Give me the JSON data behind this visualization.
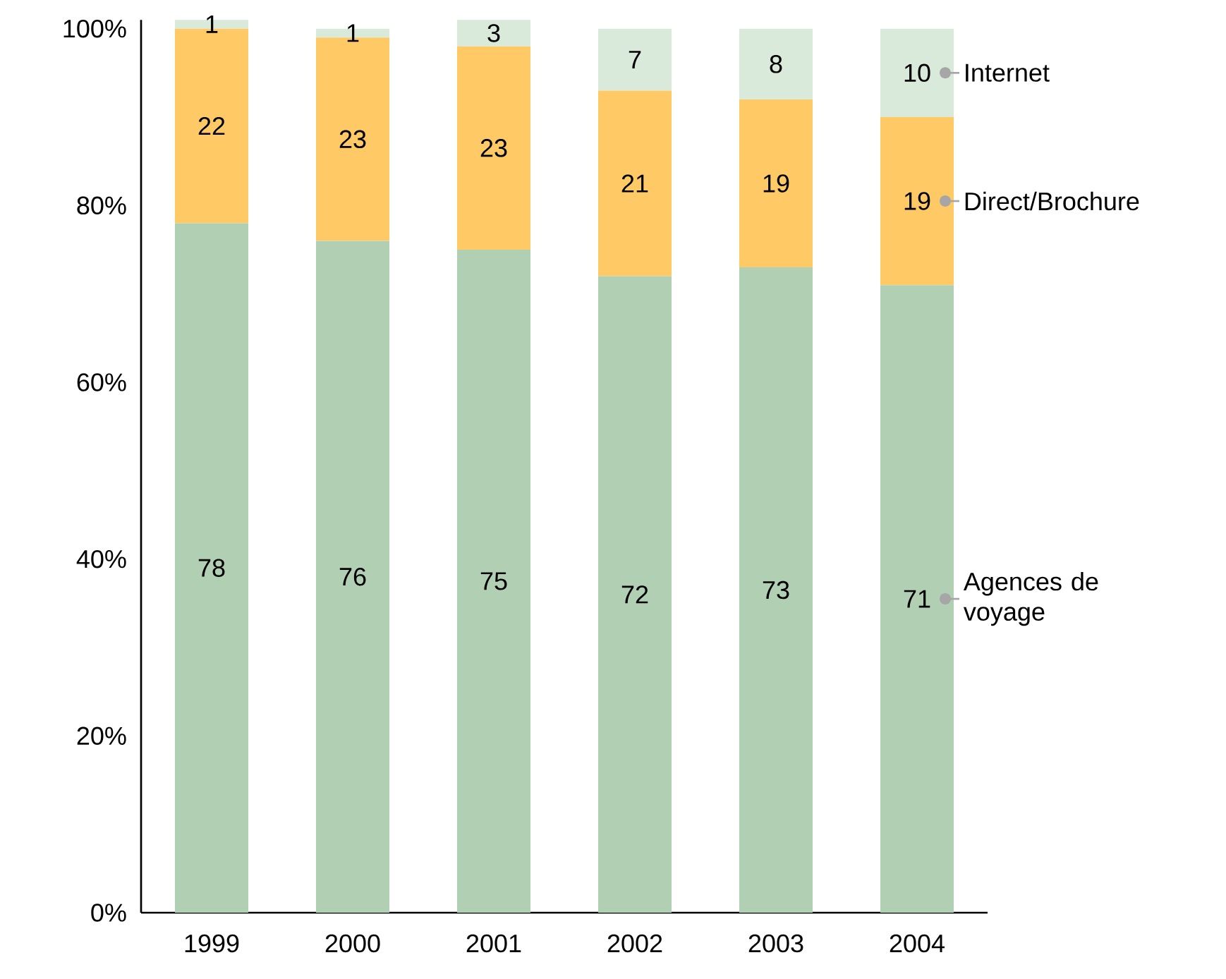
{
  "chart_data": {
    "type": "bar",
    "stacked": true,
    "data_labels": true,
    "categories": [
      "1999",
      "2000",
      "2001",
      "2002",
      "2003",
      "2004"
    ],
    "series": [
      {
        "name": "Agences de voyage",
        "color": "#b1d0b3",
        "values": [
          78,
          76,
          75,
          72,
          73,
          71
        ]
      },
      {
        "name": "Direct/Brochure",
        "color": "#ffc966",
        "values": [
          22,
          23,
          23,
          21,
          19,
          19
        ]
      },
      {
        "name": "Internet",
        "color": "#d9e9da",
        "values": [
          1,
          1,
          3,
          7,
          8,
          10
        ]
      }
    ],
    "ylim": [
      0,
      101
    ],
    "yticks": [
      {
        "value": 0,
        "label": "0%"
      },
      {
        "value": 20,
        "label": "20%"
      },
      {
        "value": 40,
        "label": "40%"
      },
      {
        "value": 60,
        "label": "60%"
      },
      {
        "value": 80,
        "label": "80%"
      },
      {
        "value": 100,
        "label": "100%"
      }
    ]
  }
}
